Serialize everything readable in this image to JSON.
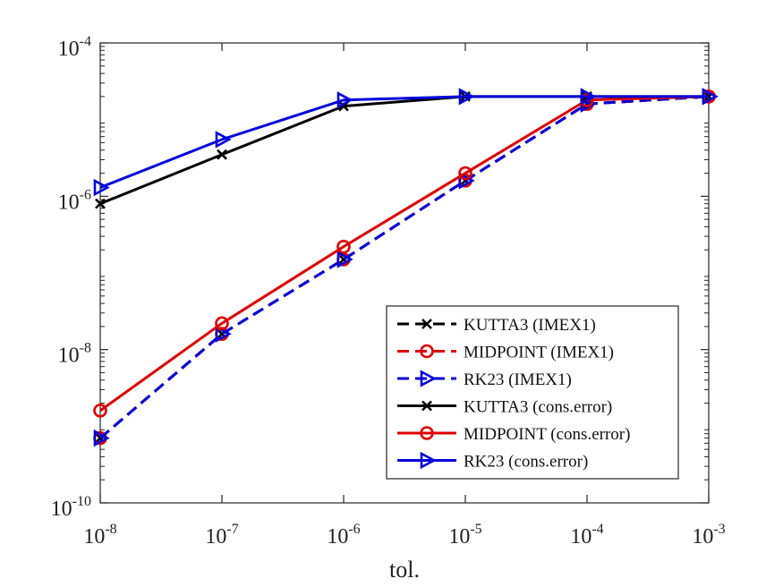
{
  "chart_data": {
    "type": "line",
    "xscale": "log",
    "yscale": "log",
    "xlabel": "tol.",
    "ylabel": "",
    "xlim": [
      1e-08,
      0.001
    ],
    "ylim": [
      1e-10,
      0.0001
    ],
    "x_ticks": [
      {
        "value": 1e-08,
        "base": "10",
        "exp": "-8"
      },
      {
        "value": 1e-07,
        "base": "10",
        "exp": "-7"
      },
      {
        "value": 1e-06,
        "base": "10",
        "exp": "-6"
      },
      {
        "value": 1e-05,
        "base": "10",
        "exp": "-5"
      },
      {
        "value": 0.0001,
        "base": "10",
        "exp": "-4"
      },
      {
        "value": 0.001,
        "base": "10",
        "exp": "-3"
      }
    ],
    "y_ticks": [
      {
        "value": 1e-10,
        "base": "10",
        "exp": "-10"
      },
      {
        "value": 1e-08,
        "base": "10",
        "exp": "-8"
      },
      {
        "value": 1e-06,
        "base": "10",
        "exp": "-6"
      },
      {
        "value": 0.0001,
        "base": "10",
        "exp": "-4"
      }
    ],
    "x": [
      1e-08,
      1e-07,
      1e-06,
      1e-05,
      0.0001,
      0.001
    ],
    "series": [
      {
        "name": "KUTTA3 (IMEX1)",
        "color": "#000000",
        "dash": "dashed",
        "marker": "x",
        "values": [
          7e-10,
          1.6e-08,
          1.5e-07,
          1.6e-06,
          1.6e-05,
          2e-05
        ]
      },
      {
        "name": "MIDPOINT (IMEX1)",
        "color": "#dd0000",
        "dash": "dashed",
        "marker": "o",
        "values": [
          7e-10,
          1.6e-08,
          1.5e-07,
          1.6e-06,
          1.6e-05,
          2e-05
        ]
      },
      {
        "name": "RK23 (IMEX1)",
        "color": "#0000dd",
        "dash": "dashed",
        "marker": "triangle-right",
        "values": [
          7e-10,
          1.6e-08,
          1.5e-07,
          1.6e-06,
          1.6e-05,
          2e-05
        ]
      },
      {
        "name": "KUTTA3 (cons.error)",
        "color": "#000000",
        "dash": "solid",
        "marker": "x",
        "values": [
          8e-07,
          3.5e-06,
          1.5e-05,
          2e-05,
          2e-05,
          2e-05
        ]
      },
      {
        "name": "MIDPOINT (cons.error)",
        "color": "#dd0000",
        "dash": "solid",
        "marker": "o",
        "values": [
          1.6e-09,
          2.2e-08,
          2.2e-07,
          2e-06,
          1.8e-05,
          2e-05
        ]
      },
      {
        "name": "RK23 (cons.error)",
        "color": "#0000dd",
        "dash": "solid",
        "marker": "triangle-right",
        "values": [
          1.3e-06,
          5.5e-06,
          1.8e-05,
          2e-05,
          2e-05,
          2e-05
        ]
      }
    ],
    "legend": "bottom-right",
    "grid": false
  }
}
